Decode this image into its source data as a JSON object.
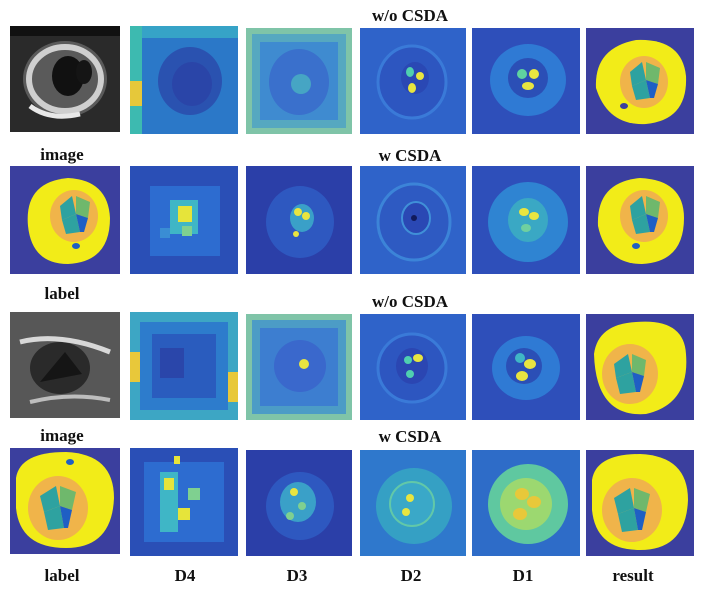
{
  "rows": [
    {
      "header": "w/o CSDA",
      "side_label": "image"
    },
    {
      "header": "w CSDA",
      "side_label": "label"
    },
    {
      "header": "w/o CSDA",
      "side_label": "image"
    },
    {
      "header": "w CSDA",
      "side_label": "label"
    }
  ],
  "columns": [
    "D4",
    "D3",
    "D2",
    "D1",
    "result"
  ],
  "colors": {
    "background_map": "#3b3f9e",
    "blue_high": "#2c6fd6",
    "cyan": "#3fb6c6",
    "yellow": "#f2ec18",
    "orange": "#f0b44a",
    "teal": "#2ea2a0",
    "green": "#6fb86c",
    "seg_blue": "#1f5fc4"
  }
}
